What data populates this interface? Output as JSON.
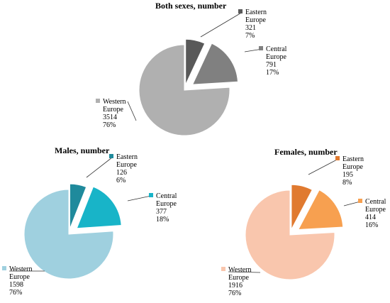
{
  "chart_data": [
    {
      "type": "pie",
      "title": "Both sexes, number",
      "slices": [
        {
          "name": "Eastern Europe",
          "name_lines": [
            "Eastern",
            "Europe"
          ],
          "value": 321,
          "percent": "7%",
          "color": "#595959"
        },
        {
          "name": "Central Europe",
          "name_lines": [
            "Central",
            "Europe"
          ],
          "value": 791,
          "percent": "17%",
          "color": "#808080"
        },
        {
          "name": "Western Europe",
          "name_lines": [
            "Western",
            "Europe"
          ],
          "value": 3514,
          "percent": "76%",
          "color": "#b0b0b0"
        }
      ]
    },
    {
      "type": "pie",
      "title": "Males, number",
      "slices": [
        {
          "name": "Eastern Europe",
          "name_lines": [
            "Eastern",
            "Europe"
          ],
          "value": 126,
          "percent": "6%",
          "color": "#1f8a9c"
        },
        {
          "name": "Central Europe",
          "name_lines": [
            "Central",
            "Europe"
          ],
          "value": 377,
          "percent": "18%",
          "color": "#18b4c8"
        },
        {
          "name": "Western Europe",
          "name_lines": [
            "Western",
            "Europe"
          ],
          "value": 1598,
          "percent": "76%",
          "color": "#9fd0df"
        }
      ]
    },
    {
      "type": "pie",
      "title": "Females, number",
      "slices": [
        {
          "name": "Eastern Europe",
          "name_lines": [
            "Eastern",
            "Europe"
          ],
          "value": 195,
          "percent": "8%",
          "color": "#e07a30"
        },
        {
          "name": "Central Europe",
          "name_lines": [
            "Central",
            "Europe"
          ],
          "value": 414,
          "percent": "16%",
          "color": "#f7a050"
        },
        {
          "name": "Western Europe",
          "name_lines": [
            "Western",
            "Europe"
          ],
          "value": 1916,
          "percent": "76%",
          "color": "#f9c6ad"
        }
      ]
    }
  ]
}
